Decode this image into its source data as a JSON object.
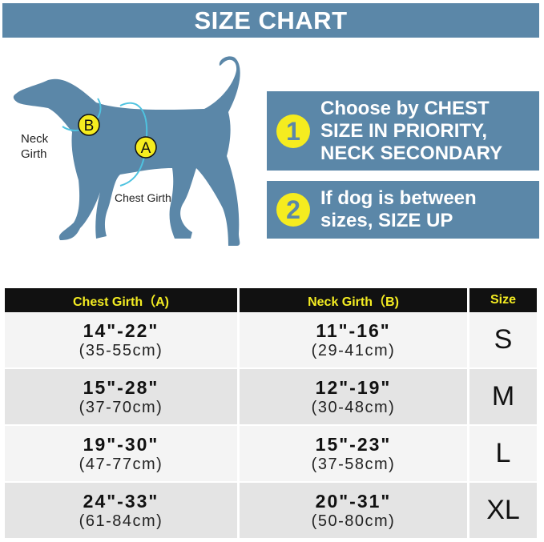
{
  "title": "SIZE CHART",
  "diagram": {
    "neck_label_1": "Neck",
    "neck_label_2": "Girth",
    "chest_label": "Chest Girth",
    "marker_a": "A",
    "marker_b": "B",
    "dog_color": "#5b87a8",
    "marker_color": "#f5ec1f",
    "arrow_color": "#4ec3e0"
  },
  "tips": [
    {
      "number": "1",
      "text": "Choose by CHEST SIZE IN PRIORITY, NECK SECONDARY"
    },
    {
      "number": "2",
      "text": "If dog is between sizes, SIZE UP"
    }
  ],
  "table": {
    "headers": [
      "Chest Girth（A)",
      "Neck Girth（B)",
      "Size"
    ],
    "rows": [
      {
        "chest_in": "14\"-22\"",
        "chest_cm": "(35-55cm)",
        "neck_in": "11\"-16\"",
        "neck_cm": "(29-41cm)",
        "size": "S"
      },
      {
        "chest_in": "15\"-28\"",
        "chest_cm": "(37-70cm)",
        "neck_in": "12\"-19\"",
        "neck_cm": "(30-48cm)",
        "size": "M"
      },
      {
        "chest_in": "19\"-30\"",
        "chest_cm": "(47-77cm)",
        "neck_in": "15\"-23\"",
        "neck_cm": "(37-58cm)",
        "size": "L"
      },
      {
        "chest_in": "24\"-33\"",
        "chest_cm": "(61-84cm)",
        "neck_in": "20\"-31\"",
        "neck_cm": "(50-80cm)",
        "size": "XL"
      }
    ]
  }
}
